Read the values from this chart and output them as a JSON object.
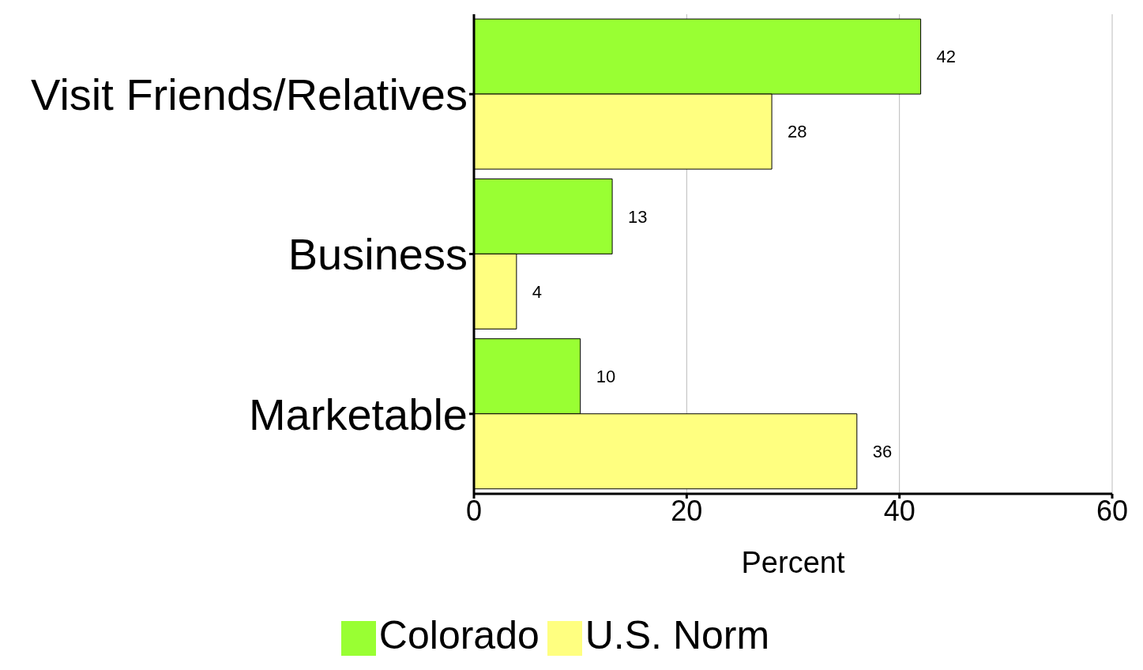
{
  "chart_data": {
    "type": "bar",
    "orientation": "horizontal",
    "categories": [
      "Visit Friends/Relatives",
      "Business",
      "Marketable"
    ],
    "series": [
      {
        "name": "Colorado",
        "color": "#99ff33",
        "values": [
          42,
          13,
          10
        ]
      },
      {
        "name": "U.S. Norm",
        "color": "#ffff80",
        "values": [
          28,
          4,
          36
        ]
      }
    ],
    "xlabel": "Percent",
    "xlim": [
      0,
      60
    ],
    "xticks": [
      0,
      20,
      40,
      60
    ],
    "grid": "x",
    "data_labels": true,
    "legend": "bottom"
  }
}
